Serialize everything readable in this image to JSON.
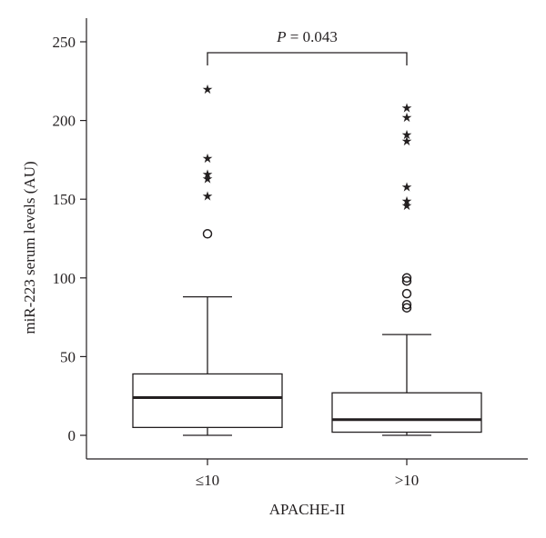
{
  "chart_data": {
    "type": "box",
    "xlabel": "APACHE-II",
    "ylabel": "miR-223 serum levels (AU)",
    "ylim": [
      -15,
      265
    ],
    "yticks": [
      0,
      50,
      100,
      150,
      200,
      250
    ],
    "categories": [
      "≤10",
      ">10"
    ],
    "groups": [
      {
        "category": "≤10",
        "min": 0,
        "q1": 5,
        "median": 24,
        "q3": 39,
        "max": 88,
        "outliers": [
          128
        ],
        "extremes": [
          152,
          163,
          166,
          176,
          220
        ]
      },
      {
        "category": ">10",
        "min": 0,
        "q1": 2,
        "median": 10,
        "q3": 27,
        "max": 64,
        "outliers": [
          81,
          83,
          90,
          98,
          100
        ],
        "extremes": [
          146,
          149,
          158,
          187,
          191,
          202,
          208
        ]
      }
    ],
    "annotation": {
      "text_italic": "P",
      "text_rest": " = 0.043"
    }
  }
}
